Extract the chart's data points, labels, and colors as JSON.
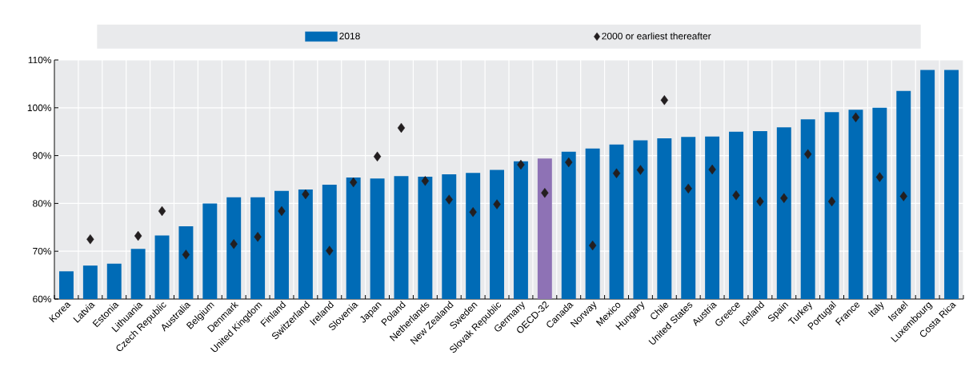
{
  "chart_data": {
    "type": "bar",
    "categories": [
      "Korea",
      "Latvia",
      "Estonia",
      "Lithuania",
      "Czech Republic",
      "Australia",
      "Belgium",
      "Denmark",
      "United Kingdom",
      "Finland",
      "Switzerland",
      "Ireland",
      "Slovenia",
      "Japan",
      "Poland",
      "Netherlands",
      "New Zealand",
      "Sweden",
      "Slovak Republic",
      "Germany",
      "OECD-32",
      "Canada",
      "Norway",
      "Mexico",
      "Hungary",
      "Chile",
      "United States",
      "Austria",
      "Greece",
      "Iceland",
      "Spain",
      "Turkey",
      "Portugal",
      "France",
      "Italy",
      "Israel",
      "Luxembourg",
      "Costa Rica"
    ],
    "series": [
      {
        "name": "2018",
        "color": "#006bb6",
        "colors": [
          "#006bb6",
          "#006bb6",
          "#006bb6",
          "#006bb6",
          "#006bb6",
          "#006bb6",
          "#006bb6",
          "#006bb6",
          "#006bb6",
          "#006bb6",
          "#006bb6",
          "#006bb6",
          "#006bb6",
          "#006bb6",
          "#006bb6",
          "#006bb6",
          "#006bb6",
          "#006bb6",
          "#006bb6",
          "#006bb6",
          "#8e72b5",
          "#006bb6",
          "#006bb6",
          "#006bb6",
          "#006bb6",
          "#006bb6",
          "#006bb6",
          "#006bb6",
          "#006bb6",
          "#006bb6",
          "#006bb6",
          "#006bb6",
          "#006bb6",
          "#006bb6",
          "#006bb6",
          "#006bb6",
          "#006bb6",
          "#006bb6"
        ],
        "values": [
          65.8,
          67.0,
          67.4,
          70.5,
          73.3,
          75.2,
          80.0,
          81.3,
          81.3,
          82.6,
          82.9,
          83.9,
          85.4,
          85.2,
          85.7,
          85.6,
          86.1,
          86.4,
          87.0,
          88.8,
          89.4,
          90.8,
          91.5,
          92.3,
          93.2,
          93.6,
          93.9,
          94.0,
          95.0,
          95.1,
          95.9,
          97.6,
          99.1,
          99.6,
          100.0,
          103.5,
          107.9,
          107.9
        ]
      },
      {
        "name": "2000 or earliest thereafter",
        "type": "scatter",
        "marker": "diamond",
        "color": "#231f20",
        "values": [
          null,
          72.5,
          null,
          73.2,
          78.4,
          69.3,
          null,
          71.5,
          73.0,
          78.4,
          81.9,
          70.1,
          84.4,
          89.8,
          95.8,
          84.7,
          80.8,
          78.2,
          79.8,
          88.1,
          82.2,
          88.6,
          71.2,
          86.3,
          87.0,
          101.6,
          83.1,
          87.1,
          81.7,
          80.4,
          81.1,
          90.3,
          80.4,
          98.0,
          85.5,
          81.5,
          null,
          null
        ]
      }
    ],
    "ylim": [
      60,
      110
    ],
    "yticks": [
      {
        "value": 60,
        "label": "60%"
      },
      {
        "value": 70,
        "label": "70%"
      },
      {
        "value": 80,
        "label": "80%"
      },
      {
        "value": 90,
        "label": "90%"
      },
      {
        "value": 100,
        "label": "100%"
      },
      {
        "value": 110,
        "label": "110%"
      }
    ],
    "grid": true,
    "legend": "top"
  }
}
